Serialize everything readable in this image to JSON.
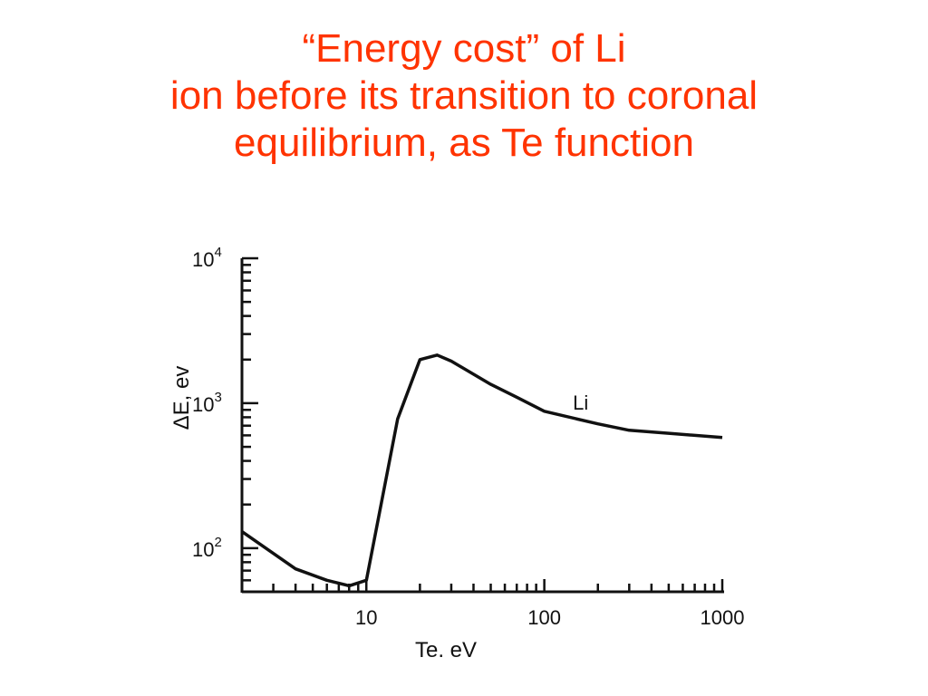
{
  "slide": {
    "title_lines": [
      "“Energy cost” of Li",
      "ion before its transition to coronal",
      "equilibrium, as Te function"
    ],
    "title_color": "#ff3300"
  },
  "chart_data": {
    "type": "line",
    "title": "",
    "xlabel": "Te, eV",
    "ylabel": "ΔE, ev",
    "xscale": "log",
    "yscale": "log",
    "xlim": [
      2,
      1000
    ],
    "ylim": [
      50,
      10000
    ],
    "x_tick_labels": [
      "10",
      "100",
      "1000"
    ],
    "x_tick_values": [
      10,
      100,
      1000
    ],
    "y_tick_labels": [
      {
        "base": "10",
        "exp": "2",
        "value": 100
      },
      {
        "base": "10",
        "exp": "3",
        "value": 1000
      },
      {
        "base": "10",
        "exp": "4",
        "value": 10000
      }
    ],
    "grid": false,
    "line_color": "#111111",
    "series": [
      {
        "name": "Li",
        "x": [
          2,
          4,
          6,
          8,
          10,
          15,
          20,
          25,
          30,
          50,
          70,
          100,
          200,
          300,
          500,
          1000
        ],
        "y": [
          130,
          72,
          60,
          55,
          60,
          780,
          2000,
          2150,
          1950,
          1350,
          1100,
          880,
          720,
          650,
          620,
          580
        ]
      }
    ]
  }
}
